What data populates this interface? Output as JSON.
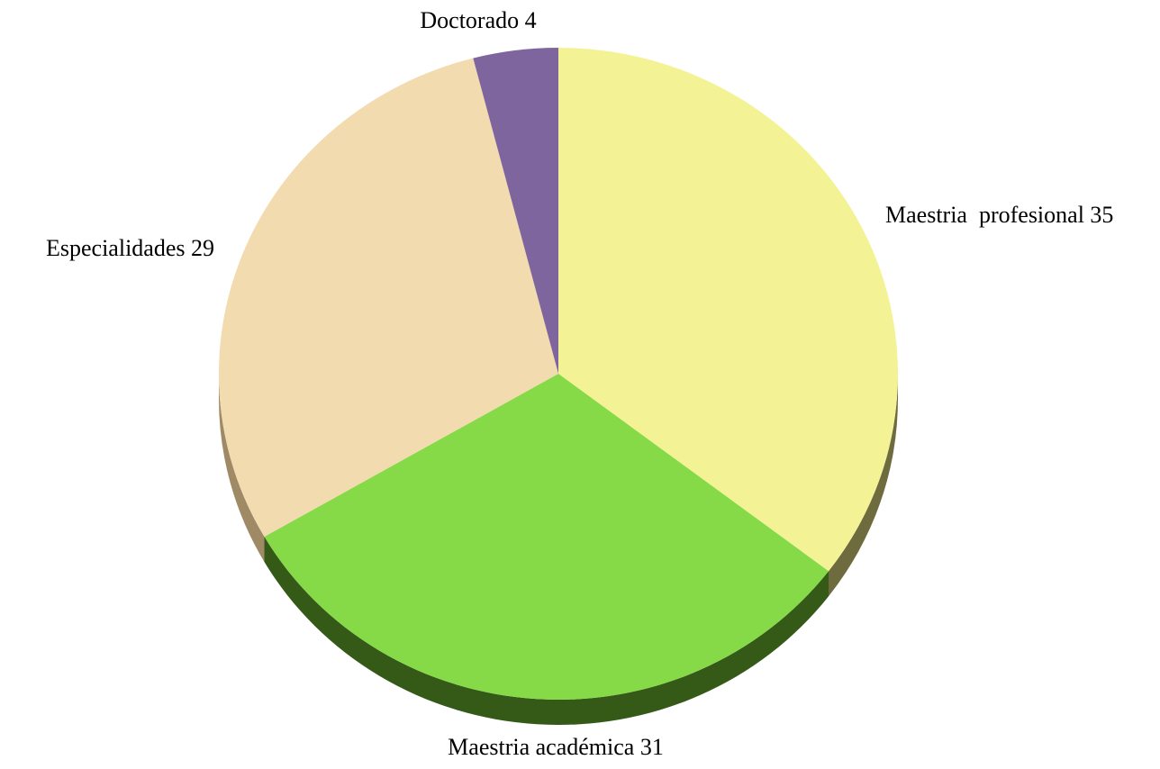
{
  "chart_data": {
    "type": "pie",
    "title": "",
    "slices": [
      {
        "label": "Maestria  profesional 35",
        "name": "Maestria profesional",
        "value": 35,
        "color": "#F3F395",
        "side_color": "#6E6B3F"
      },
      {
        "label": "Maestria académica 31",
        "name": "Maestria académica",
        "value": 31,
        "color": "#86DA47",
        "side_color": "#355A18"
      },
      {
        "label": "Especialidades 29",
        "name": "Especialidades",
        "value": 29,
        "color": "#F3DBB0",
        "side_color": "#A08A66"
      },
      {
        "label": "Doctorado 4",
        "name": "Doctorado",
        "value": 4,
        "color": "#7F659D",
        "side_color": "#4B3A60"
      }
    ],
    "start_angle": "12 o'clock",
    "direction": "clockwise",
    "style": "3d-tilted",
    "legend": "none"
  }
}
